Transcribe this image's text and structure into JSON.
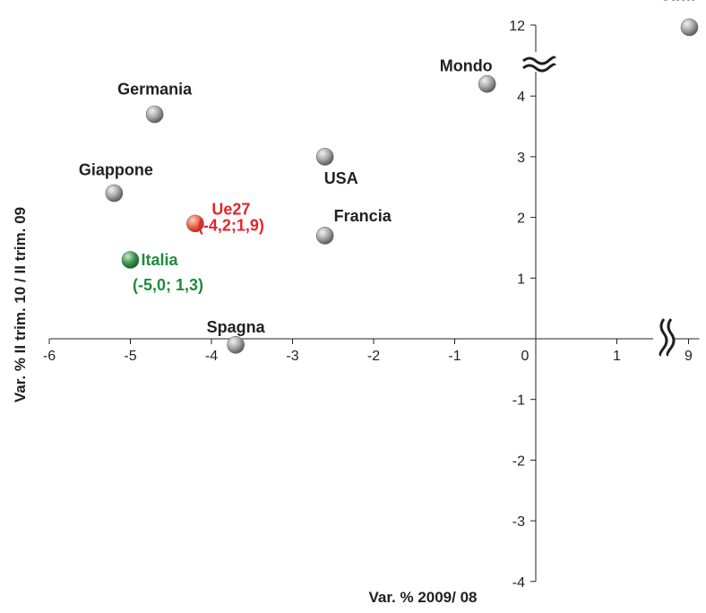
{
  "chart_data": {
    "type": "scatter",
    "xlabel": "Var. % 2009/ 08",
    "ylabel": "Var. % II trim. 10 / II trim. 09",
    "x_ticks": [
      "-6",
      "-5",
      "-4",
      "-3",
      "-2",
      "-1",
      "0",
      "1",
      "9"
    ],
    "y_ticks": [
      "12",
      "4",
      "3",
      "2",
      "1",
      "0",
      "-1",
      "-2",
      "-3",
      "-4"
    ],
    "xlim": [
      -6,
      9
    ],
    "ylim": [
      -4,
      12
    ],
    "x_axis_break": true,
    "y_axis_break": true,
    "grid": false,
    "points": [
      {
        "label": "Cina",
        "x": 9.1,
        "y": 11.6,
        "color": "#9a9a9a"
      },
      {
        "label": "Mondo",
        "x": -0.6,
        "y": 4.2,
        "color": "#9a9a9a"
      },
      {
        "label": "Germania",
        "x": -4.7,
        "y": 3.7,
        "color": "#9a9a9a"
      },
      {
        "label": "USA",
        "x": -2.6,
        "y": 3.0,
        "color": "#9a9a9a"
      },
      {
        "label": "Giappone",
        "x": -5.2,
        "y": 2.4,
        "color": "#9a9a9a"
      },
      {
        "label": "Ue27",
        "sublabel": "(-4,2;1,9)",
        "x": -4.2,
        "y": 1.9,
        "color": "#e8412c"
      },
      {
        "label": "Francia",
        "x": -2.6,
        "y": 1.7,
        "color": "#9a9a9a"
      },
      {
        "label": "Italia",
        "sublabel": "(-5,0; 1,3)",
        "x": -5.0,
        "y": 1.3,
        "color": "#1f8a3b"
      },
      {
        "label": "Spagna",
        "x": -3.7,
        "y": -0.1,
        "color": "#9a9a9a"
      }
    ]
  }
}
